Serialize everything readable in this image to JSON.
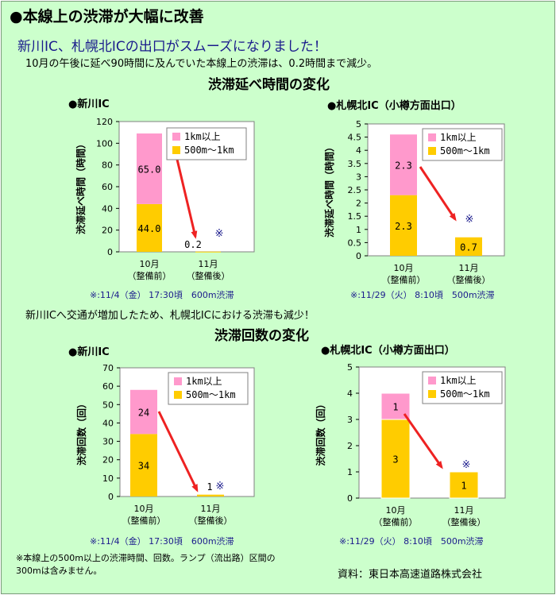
{
  "header": {
    "headline": "●本線上の渋滞が大幅に改善",
    "subheadline": "新川IC、札幌北ICの出口がスムーズになりました！",
    "description": "10月の午後に延べ90時間に及んでいた本線上の渋滞は、0.2時間まで減少。"
  },
  "section1": {
    "title": "渋滞延べ時間の変化"
  },
  "section2": {
    "title": "渋滞回数の変化"
  },
  "middle_text": "新川ICへ交通が増加したため、札幌北ICにおける渋滞も減少！",
  "footnote": "※本線上の500m以上の渋滞時間、回数。ランプ（流出路）区間の300mは含みません。",
  "source": "資料：東日本高速道路株式会社",
  "colors": {
    "pink": "#ff99cc",
    "yellow": "#ffcc00",
    "arrow": "#ee2222",
    "note_blue": "#1a1a8c",
    "background": "#ccffcc"
  },
  "chart_data": [
    {
      "type": "bar",
      "panel_title": "●新川IC",
      "ylabel": "渋滞延べ時間（時間）",
      "ylim": [
        0,
        120
      ],
      "yticks": [
        "0",
        "20",
        "40",
        "60",
        "80",
        "100",
        "120"
      ],
      "categories": [
        "10月\n（整備前）",
        "11月\n（整備後）"
      ],
      "series": [
        {
          "name": "500m〜1km",
          "values": [
            44.0,
            0.2
          ],
          "labels": [
            "44.0",
            ""
          ]
        },
        {
          "name": "1km以上",
          "values": [
            65.0,
            0
          ],
          "labels": [
            "65.0",
            ""
          ]
        }
      ],
      "total_labels": [
        "",
        "0.2"
      ],
      "note_mark": "※",
      "footnote": "※:11/4（金） 17:30頃　600m渋滞"
    },
    {
      "type": "bar",
      "panel_title": "●札幌北IC（小樽方面出口）",
      "ylabel": "渋滞延べ時間（時間）",
      "ylim": [
        0,
        5
      ],
      "yticks": [
        "0",
        "0.5",
        "1",
        "1.5",
        "2",
        "2.5",
        "3",
        "3.5",
        "4",
        "4.5",
        "5"
      ],
      "categories": [
        "10月\n（整備前）",
        "11月\n（整備後）"
      ],
      "series": [
        {
          "name": "500m〜1km",
          "values": [
            2.3,
            0.7
          ],
          "labels": [
            "2.3",
            "0.7"
          ]
        },
        {
          "name": "1km以上",
          "values": [
            2.3,
            0
          ],
          "labels": [
            "2.3",
            ""
          ]
        }
      ],
      "total_labels": [
        "",
        ""
      ],
      "note_mark": "※",
      "footnote": "※:11/29（火） 8:10頃　500m渋滞"
    },
    {
      "type": "bar",
      "panel_title": "●新川IC",
      "ylabel": "渋滞回数（回）",
      "ylim": [
        0,
        70
      ],
      "yticks": [
        "0",
        "10",
        "20",
        "30",
        "40",
        "50",
        "60",
        "70"
      ],
      "categories": [
        "10月\n（整備前）",
        "11月\n（整備後）"
      ],
      "series": [
        {
          "name": "500m〜1km",
          "values": [
            34,
            1
          ],
          "labels": [
            "34",
            ""
          ]
        },
        {
          "name": "1km以上",
          "values": [
            24,
            0
          ],
          "labels": [
            "24",
            ""
          ]
        }
      ],
      "total_labels": [
        "",
        "1"
      ],
      "note_mark": "※",
      "footnote": "※:11/4（金） 17:30頃　600m渋滞"
    },
    {
      "type": "bar",
      "panel_title": "●札幌北IC（小樽方面出口）",
      "ylabel": "渋滞回数（回）",
      "ylim": [
        0,
        5
      ],
      "yticks": [
        "0",
        "1",
        "2",
        "3",
        "4",
        "5"
      ],
      "categories": [
        "10月\n（整備前）",
        "11月\n（整備後）"
      ],
      "series": [
        {
          "name": "500m〜1km",
          "values": [
            3,
            1
          ],
          "labels": [
            "3",
            "1"
          ]
        },
        {
          "name": "1km以上",
          "values": [
            1,
            0
          ],
          "labels": [
            "1",
            ""
          ]
        }
      ],
      "total_labels": [
        "",
        ""
      ],
      "note_mark": "※",
      "footnote": "※:11/29（火） 8:10頃　500m渋滞"
    }
  ]
}
